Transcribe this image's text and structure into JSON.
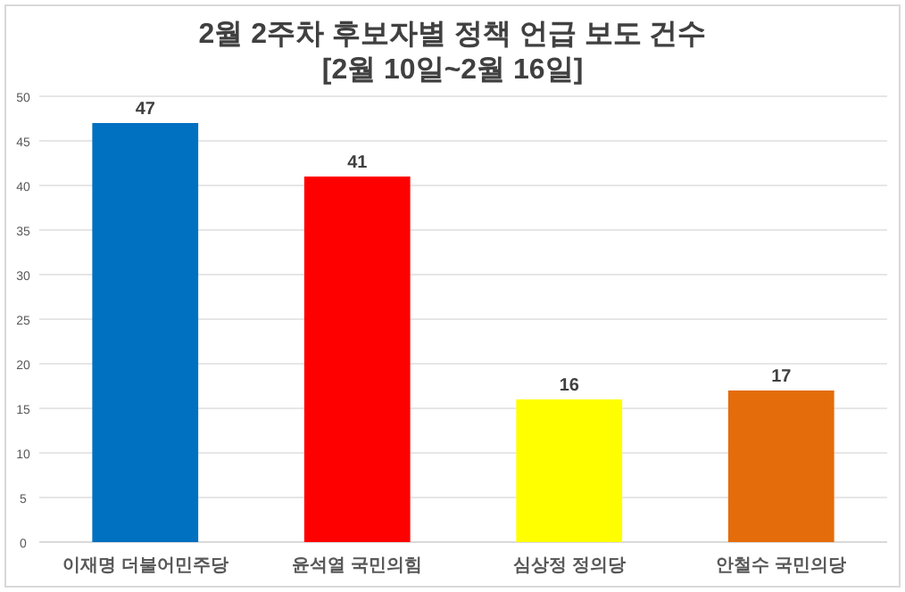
{
  "chart_data": {
    "type": "bar",
    "title": "2월 2주차 후보자별 정책 언급 보도 건수",
    "subtitle": "[2월 10일~2월 16일]",
    "categories": [
      "이재명 더불어민주당",
      "윤석열 국민의힘",
      "심상정 정의당",
      "안철수 국민의당"
    ],
    "values": [
      47,
      41,
      16,
      17
    ],
    "colors": [
      "#0070c0",
      "#ff0000",
      "#ffff00",
      "#e46c0a"
    ],
    "ylim": [
      0,
      50
    ],
    "yticks": [
      0,
      5,
      10,
      15,
      20,
      25,
      30,
      35,
      40,
      45,
      50
    ],
    "grid": "y",
    "data_labels": true
  }
}
